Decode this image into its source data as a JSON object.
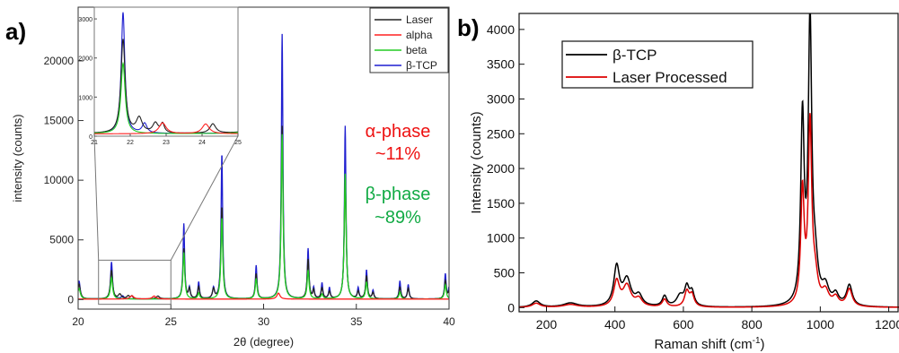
{
  "chart_data": [
    {
      "panel_label": "a)",
      "type": "line",
      "xlabel": "2θ (degree)",
      "ylabel": "intensity (counts)",
      "xlim": [
        20,
        40
      ],
      "ylim": [
        -800,
        24500
      ],
      "xticks": [
        "20",
        "25",
        "30",
        "35",
        "40"
      ],
      "yticks": [
        "0",
        "5000",
        "10000",
        "15000",
        "20000"
      ],
      "legend": {
        "position": "top-right"
      },
      "series": [
        {
          "name": "Laser",
          "color": "#222222",
          "peaks": [
            [
              20.05,
              1250,
              0.08
            ],
            [
              21.8,
              2400,
              0.07
            ],
            [
              22.25,
              380,
              0.1
            ],
            [
              22.7,
              250,
              0.09
            ],
            [
              22.9,
              230,
              0.06
            ],
            [
              24.3,
              240,
              0.1
            ],
            [
              25.7,
              4200,
              0.06
            ],
            [
              26.0,
              800,
              0.06
            ],
            [
              26.5,
              1000,
              0.06
            ],
            [
              27.3,
              800,
              0.07
            ],
            [
              27.75,
              7700,
              0.06
            ],
            [
              29.6,
              2100,
              0.06
            ],
            [
              31.0,
              14500,
              0.06
            ],
            [
              32.4,
              3300,
              0.06
            ],
            [
              32.7,
              700,
              0.05
            ],
            [
              33.15,
              900,
              0.06
            ],
            [
              33.55,
              600,
              0.06
            ],
            [
              34.4,
              10400,
              0.06
            ],
            [
              35.1,
              600,
              0.06
            ],
            [
              35.55,
              1900,
              0.06
            ],
            [
              35.9,
              500,
              0.06
            ],
            [
              37.35,
              1000,
              0.06
            ],
            [
              37.8,
              900,
              0.06
            ],
            [
              39.8,
              1500,
              0.06
            ],
            [
              40.0,
              600,
              0.06
            ]
          ]
        },
        {
          "name": "alpha",
          "color": "#ff2020",
          "peaks": [
            [
              22.9,
              280,
              0.12
            ],
            [
              24.1,
              250,
              0.12
            ],
            [
              30.8,
              500,
              0.1
            ]
          ]
        },
        {
          "name": "beta",
          "color": "#22cc22",
          "peaks": [
            [
              20.05,
              900,
              0.08
            ],
            [
              21.8,
              1800,
              0.07
            ],
            [
              25.7,
              3900,
              0.06
            ],
            [
              26.5,
              500,
              0.06
            ],
            [
              27.75,
              6800,
              0.06
            ],
            [
              29.6,
              1700,
              0.06
            ],
            [
              31.0,
              13800,
              0.06
            ],
            [
              32.4,
              2400,
              0.06
            ],
            [
              33.15,
              400,
              0.06
            ],
            [
              34.4,
              10500,
              0.06
            ],
            [
              35.55,
              1400,
              0.06
            ],
            [
              37.35,
              600,
              0.06
            ],
            [
              39.8,
              1200,
              0.06
            ]
          ]
        },
        {
          "name": "β-TCP",
          "color": "#1f1fd0",
          "peaks": [
            [
              20.05,
              1500,
              0.07
            ],
            [
              21.8,
              3100,
              0.06
            ],
            [
              22.4,
              250,
              0.08
            ],
            [
              25.7,
              6300,
              0.05
            ],
            [
              26.0,
              900,
              0.05
            ],
            [
              26.5,
              1400,
              0.05
            ],
            [
              27.3,
              900,
              0.06
            ],
            [
              27.75,
              12200,
              0.05
            ],
            [
              29.6,
              2800,
              0.05
            ],
            [
              31.0,
              22200,
              0.05
            ],
            [
              32.4,
              4200,
              0.05
            ],
            [
              32.7,
              900,
              0.05
            ],
            [
              33.15,
              1300,
              0.05
            ],
            [
              33.55,
              900,
              0.05
            ],
            [
              34.4,
              14500,
              0.05
            ],
            [
              35.1,
              900,
              0.05
            ],
            [
              35.55,
              2400,
              0.05
            ],
            [
              35.9,
              700,
              0.05
            ],
            [
              37.35,
              1500,
              0.05
            ],
            [
              37.8,
              1200,
              0.05
            ],
            [
              39.8,
              2100,
              0.05
            ],
            [
              40.0,
              900,
              0.05
            ]
          ]
        }
      ],
      "annotations": [
        {
          "text": "α-phase",
          "color": "#ee1111"
        },
        {
          "text": "~11%",
          "color": "#ee1111"
        },
        {
          "text": "β-phase",
          "color": "#11aa44"
        },
        {
          "text": "~89%",
          "color": "#11aa44"
        }
      ],
      "inset": {
        "xlim": [
          21,
          25
        ],
        "ylim": [
          0,
          3300
        ],
        "xticks": [
          "21",
          "22",
          "23",
          "24",
          "25"
        ],
        "yticks": [
          "0",
          "1000",
          "2000",
          "3000"
        ]
      }
    },
    {
      "panel_label": "b)",
      "type": "line",
      "xlabel": "Raman shift (cm",
      "xlabel_sup": "-1",
      "xlabel_tail": ")",
      "ylabel": "Intensity (counts)",
      "xlim": [
        120,
        1230
      ],
      "ylim": [
        -60,
        4230
      ],
      "xticks": [
        "200",
        "400",
        "600",
        "800",
        "1000",
        "1200"
      ],
      "yticks": [
        "0",
        "500",
        "1000",
        "1500",
        "2000",
        "2500",
        "3000",
        "3500",
        "4000"
      ],
      "legend": {
        "position": "top-left"
      },
      "series": [
        {
          "name": "β-TCP",
          "color": "#000000",
          "peaks": [
            [
              170,
              90,
              14
            ],
            [
              270,
              60,
              25
            ],
            [
              405,
              560,
              10
            ],
            [
              435,
              380,
              14
            ],
            [
              470,
              150,
              12
            ],
            [
              545,
              150,
              8
            ],
            [
              590,
              150,
              12
            ],
            [
              610,
              260,
              8
            ],
            [
              625,
              200,
              8
            ],
            [
              948,
              2650,
              6
            ],
            [
              970,
              4000,
              6
            ],
            [
              985,
              500,
              10
            ],
            [
              1015,
              250,
              12
            ],
            [
              1045,
              150,
              10
            ],
            [
              1085,
              300,
              10
            ]
          ]
        },
        {
          "name": "Laser Processed",
          "color": "#dd0000",
          "peaks": [
            [
              170,
              60,
              14
            ],
            [
              270,
              40,
              25
            ],
            [
              405,
              360,
              10
            ],
            [
              435,
              300,
              14
            ],
            [
              470,
              110,
              12
            ],
            [
              545,
              110,
              8
            ],
            [
              610,
              220,
              8
            ],
            [
              625,
              170,
              8
            ],
            [
              948,
              1620,
              6
            ],
            [
              970,
              2560,
              6
            ],
            [
              985,
              350,
              10
            ],
            [
              1015,
              200,
              12
            ],
            [
              1045,
              120,
              10
            ],
            [
              1085,
              250,
              10
            ]
          ]
        }
      ]
    }
  ]
}
